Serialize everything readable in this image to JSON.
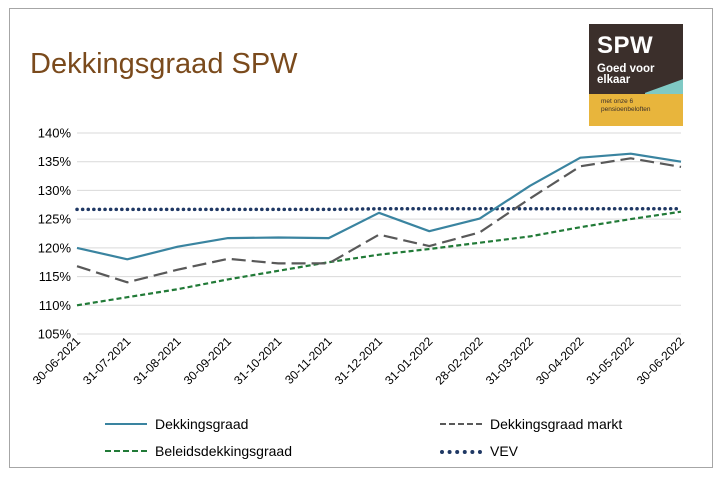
{
  "chart_data": {
    "type": "line",
    "title": "Dekkingsgraad SPW",
    "categories": [
      "30-06-2021",
      "31-07-2021",
      "31-08-2021",
      "30-09-2021",
      "31-10-2021",
      "30-11-2021",
      "31-12-2021",
      "31-01-2022",
      "28-02-2022",
      "31-03-2022",
      "30-04-2022",
      "31-05-2022",
      "30-06-2022"
    ],
    "ylim": [
      105,
      140
    ],
    "yticks": [
      105,
      110,
      115,
      120,
      125,
      130,
      135,
      140
    ],
    "ytick_labels": [
      "105%",
      "110%",
      "115%",
      "120%",
      "125%",
      "130%",
      "135%",
      "140%"
    ],
    "grid": true,
    "legend_position": "bottom",
    "series": [
      {
        "name": "Dekkingsgraad",
        "color": "#3a84a0",
        "style": "solid",
        "values": [
          120.0,
          118.0,
          120.2,
          121.7,
          121.8,
          121.7,
          126.1,
          122.9,
          125.1,
          130.8,
          135.7,
          136.4,
          135.0
        ]
      },
      {
        "name": "Dekkingsgraad markt",
        "color": "#595959",
        "style": "dash",
        "values": [
          116.8,
          114.0,
          116.2,
          118.1,
          117.3,
          117.3,
          122.3,
          120.3,
          122.7,
          128.6,
          134.2,
          135.6,
          134.1
        ]
      },
      {
        "name": "Beleidsdekkingsgraad",
        "color": "#217a37",
        "style": "shortdash",
        "values": [
          110.0,
          111.4,
          112.8,
          114.5,
          116.0,
          117.5,
          118.8,
          119.8,
          120.9,
          122.0,
          123.6,
          125.0,
          126.3
        ]
      },
      {
        "name": "VEV",
        "color": "#1f3864",
        "style": "dot",
        "values": [
          126.7,
          126.7,
          126.7,
          126.7,
          126.7,
          126.7,
          126.8,
          126.8,
          126.8,
          126.8,
          126.8,
          126.8,
          126.8
        ]
      }
    ]
  },
  "logo": {
    "brand": "SPW",
    "tagline": "Goed voor elkaar",
    "sub": "met onze 6 pensioenbeloften"
  }
}
